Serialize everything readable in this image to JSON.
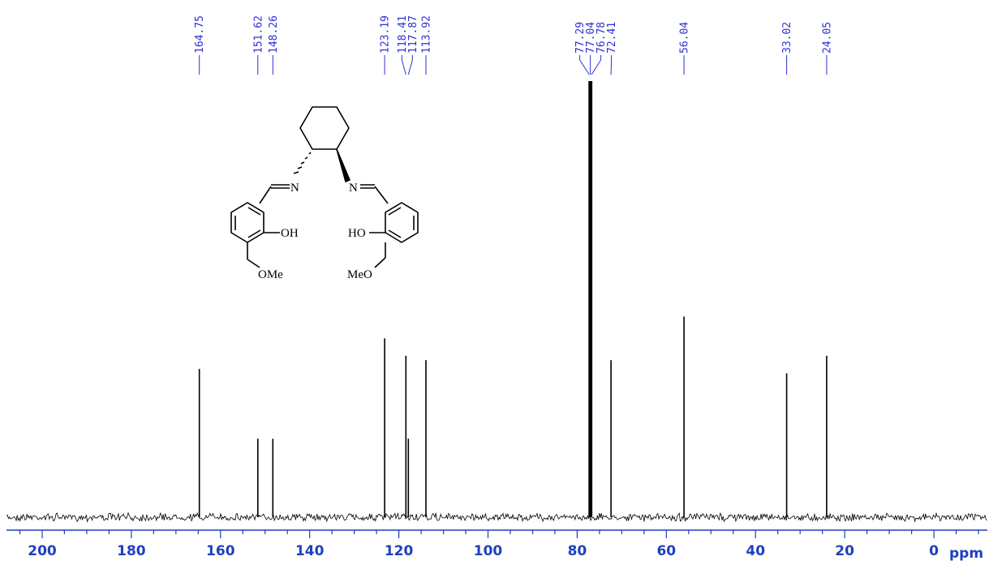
{
  "colors": {
    "spectrum": "#000000",
    "axis": "#1f3fbf",
    "labels": "#2f2fd6"
  },
  "chart_data": {
    "type": "line",
    "title": "",
    "xlabel": "ppm",
    "ylabel": "",
    "x_reversed": true,
    "xlim": [
      208,
      -12
    ],
    "x_ticks": [
      200,
      180,
      160,
      140,
      120,
      100,
      80,
      60,
      40,
      20,
      0
    ],
    "x_tick_labels": [
      "200",
      "180",
      "160",
      "140",
      "120",
      "100",
      "80",
      "60",
      "40",
      "20",
      "0"
    ],
    "grid": false,
    "legend": "none",
    "peak_labels": [
      "164.75",
      "151.62",
      "148.26",
      "123.19",
      "118.41",
      "117.87",
      "113.92",
      "77.29",
      "77.04",
      "76.78",
      "72.41",
      "56.04",
      "33.02",
      "24.05"
    ],
    "peaks": [
      {
        "x": 164.75,
        "intensity": 0.34
      },
      {
        "x": 151.62,
        "intensity": 0.18
      },
      {
        "x": 148.26,
        "intensity": 0.18
      },
      {
        "x": 123.19,
        "intensity": 0.41
      },
      {
        "x": 118.41,
        "intensity": 0.37
      },
      {
        "x": 117.87,
        "intensity": 0.18
      },
      {
        "x": 113.92,
        "intensity": 0.36
      },
      {
        "x": 77.29,
        "intensity": 1.0
      },
      {
        "x": 77.04,
        "intensity": 1.0
      },
      {
        "x": 76.78,
        "intensity": 1.0
      },
      {
        "x": 72.41,
        "intensity": 0.36
      },
      {
        "x": 56.04,
        "intensity": 0.46
      },
      {
        "x": 33.02,
        "intensity": 0.33
      },
      {
        "x": 24.05,
        "intensity": 0.37
      }
    ]
  },
  "structure": {
    "labels": {
      "n_left": "N",
      "n_right": "N",
      "oh_left": "OH",
      "oh_right": "HO",
      "ome_left": "OMe",
      "ome_right": "MeO"
    }
  }
}
